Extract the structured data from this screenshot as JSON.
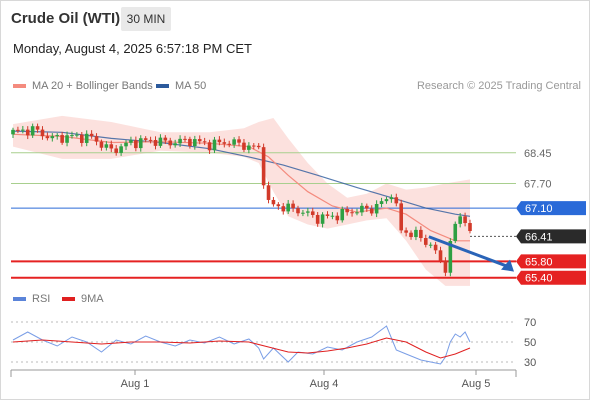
{
  "header": {
    "title": "Crude Oil (WTI)",
    "timeframe": "30 MIN",
    "timestamp": "Monday, August 4, 2025 6:57:18 PM CET"
  },
  "legend_main": [
    {
      "label": "MA 20 + Bollinger Bands",
      "color": "#f48b7e"
    },
    {
      "label": "MA 50",
      "color": "#2c5a9c"
    }
  ],
  "credit": "Research © 2025 Trading Central",
  "legend_rsi": [
    {
      "label": "RSI",
      "color": "#5b84d9"
    },
    {
      "label": "9MA",
      "color": "#e02020"
    }
  ],
  "colors": {
    "up": "#2ea043",
    "down": "#d23a2a",
    "ma50": "#2c5a9c",
    "ma20": "#f48b7e",
    "band": "#fcdcd8",
    "pivot": "#2a6ad8",
    "resistance": "#a8cf8e",
    "support": "#e52222",
    "current": "#2a2a2a",
    "arrow": "#2a64b8",
    "rsi": "#7a9ee6",
    "rsi_ma": "#e02020"
  },
  "chart_data": [
    {
      "type": "candlestick",
      "title": "Crude Oil (WTI)",
      "timeframe": "30 MIN",
      "x_ticks": [
        "Aug 1",
        "Aug 4",
        "Aug 5"
      ],
      "ylim": [
        65.1,
        69.25
      ],
      "candle_count": 94,
      "levels": [
        {
          "value": 68.45,
          "label": "68.45",
          "kind": "resistance"
        },
        {
          "value": 67.7,
          "label": "67.70",
          "kind": "resistance"
        },
        {
          "value": 67.1,
          "label": "67.10",
          "kind": "pivot"
        },
        {
          "value": 66.41,
          "label": "66.41",
          "kind": "current"
        },
        {
          "value": 65.8,
          "label": "65.80",
          "kind": "support"
        },
        {
          "value": 65.4,
          "label": "65.40",
          "kind": "support"
        }
      ],
      "close_path": [
        [
          0,
          68.95
        ],
        [
          4,
          69.02
        ],
        [
          8,
          68.8
        ],
        [
          12,
          68.85
        ],
        [
          16,
          68.82
        ],
        [
          20,
          68.5
        ],
        [
          24,
          68.7
        ],
        [
          28,
          68.75
        ],
        [
          32,
          68.7
        ],
        [
          36,
          68.75
        ],
        [
          40,
          68.65
        ],
        [
          44,
          68.72
        ],
        [
          48,
          68.6
        ],
        [
          50,
          68.55
        ],
        [
          51,
          67.8
        ],
        [
          52,
          67.2
        ],
        [
          54,
          67.15
        ],
        [
          58,
          67.05
        ],
        [
          62,
          66.85
        ],
        [
          65,
          66.9
        ],
        [
          70,
          67.05
        ],
        [
          73,
          67.08
        ],
        [
          76,
          67.3
        ],
        [
          77,
          67.5
        ],
        [
          78,
          67.1
        ],
        [
          79,
          66.55
        ],
        [
          82,
          66.45
        ],
        [
          85,
          66.2
        ],
        [
          87,
          65.8
        ],
        [
          88,
          65.65
        ],
        [
          89,
          66.2
        ],
        [
          90,
          66.7
        ],
        [
          91,
          66.9
        ],
        [
          92,
          66.85
        ],
        [
          93,
          66.41
        ]
      ],
      "ma50_path": [
        [
          0,
          68.98
        ],
        [
          10,
          68.95
        ],
        [
          20,
          68.8
        ],
        [
          30,
          68.7
        ],
        [
          40,
          68.55
        ],
        [
          48,
          68.35
        ],
        [
          55,
          68.15
        ],
        [
          62,
          67.9
        ],
        [
          70,
          67.6
        ],
        [
          78,
          67.32
        ],
        [
          84,
          67.1
        ],
        [
          90,
          66.95
        ],
        [
          93,
          66.9
        ]
      ],
      "ma20_path": [
        [
          0,
          68.9
        ],
        [
          10,
          68.85
        ],
        [
          20,
          68.7
        ],
        [
          30,
          68.72
        ],
        [
          40,
          68.68
        ],
        [
          48,
          68.6
        ],
        [
          52,
          68.35
        ],
        [
          56,
          67.9
        ],
        [
          60,
          67.5
        ],
        [
          65,
          67.15
        ],
        [
          70,
          67.0
        ],
        [
          76,
          67.1
        ],
        [
          80,
          66.95
        ],
        [
          85,
          66.55
        ],
        [
          90,
          66.3
        ],
        [
          93,
          66.3
        ]
      ],
      "band_upper_path": [
        [
          0,
          69.15
        ],
        [
          10,
          69.35
        ],
        [
          20,
          69.2
        ],
        [
          30,
          68.95
        ],
        [
          40,
          68.95
        ],
        [
          47,
          69.05
        ],
        [
          50,
          69.2
        ],
        [
          53,
          69.3
        ],
        [
          56,
          68.8
        ],
        [
          60,
          68.2
        ],
        [
          64,
          67.7
        ],
        [
          68,
          67.35
        ],
        [
          72,
          67.45
        ],
        [
          76,
          67.7
        ],
        [
          80,
          67.55
        ],
        [
          84,
          67.6
        ],
        [
          88,
          67.7
        ],
        [
          93,
          67.8
        ]
      ],
      "band_lower_path": [
        [
          0,
          68.6
        ],
        [
          10,
          68.3
        ],
        [
          20,
          68.3
        ],
        [
          30,
          68.5
        ],
        [
          40,
          68.45
        ],
        [
          47,
          68.35
        ],
        [
          50,
          68.2
        ],
        [
          53,
          67.5
        ],
        [
          56,
          66.9
        ],
        [
          60,
          66.7
        ],
        [
          64,
          66.6
        ],
        [
          68,
          66.7
        ],
        [
          72,
          66.8
        ],
        [
          76,
          66.85
        ],
        [
          80,
          66.3
        ],
        [
          84,
          65.6
        ],
        [
          88,
          65.2
        ],
        [
          93,
          65.2
        ]
      ],
      "forecast_arrow": [
        [
          83,
          66.4
        ],
        [
          93,
          65.55
        ]
      ]
    },
    {
      "type": "line",
      "title": "RSI",
      "ylim": [
        20,
        78
      ],
      "y_ticks": [
        70,
        50,
        30
      ],
      "series": [
        {
          "name": "RSI",
          "points": [
            [
              0,
              52
            ],
            [
              3,
              60
            ],
            [
              6,
              52
            ],
            [
              9,
              46
            ],
            [
              12,
              55
            ],
            [
              15,
              50
            ],
            [
              18,
              40
            ],
            [
              21,
              52
            ],
            [
              24,
              48
            ],
            [
              27,
              56
            ],
            [
              30,
              50
            ],
            [
              33,
              46
            ],
            [
              36,
              52
            ],
            [
              39,
              49
            ],
            [
              42,
              55
            ],
            [
              45,
              48
            ],
            [
              48,
              53
            ],
            [
              50,
              44
            ],
            [
              51,
              33
            ],
            [
              53,
              44
            ],
            [
              56,
              30
            ],
            [
              58,
              40
            ],
            [
              61,
              38
            ],
            [
              64,
              45
            ],
            [
              67,
              42
            ],
            [
              70,
              50
            ],
            [
              73,
              55
            ],
            [
              76,
              66
            ],
            [
              77,
              54
            ],
            [
              78,
              42
            ],
            [
              80,
              38
            ],
            [
              83,
              32
            ],
            [
              85,
              30
            ],
            [
              87,
              28
            ],
            [
              88,
              35
            ],
            [
              89,
              50
            ],
            [
              90,
              58
            ],
            [
              91,
              55
            ],
            [
              92,
              60
            ],
            [
              93,
              50
            ]
          ]
        },
        {
          "name": "9MA",
          "points": [
            [
              0,
              50
            ],
            [
              6,
              52
            ],
            [
              12,
              50
            ],
            [
              18,
              48
            ],
            [
              24,
              50
            ],
            [
              30,
              50
            ],
            [
              36,
              49
            ],
            [
              42,
              51
            ],
            [
              48,
              50
            ],
            [
              52,
              45
            ],
            [
              56,
              40
            ],
            [
              60,
              39
            ],
            [
              64,
              41
            ],
            [
              68,
              44
            ],
            [
              72,
              48
            ],
            [
              76,
              54
            ],
            [
              80,
              50
            ],
            [
              84,
              40
            ],
            [
              87,
              34
            ],
            [
              90,
              38
            ],
            [
              93,
              44
            ]
          ]
        }
      ]
    }
  ]
}
